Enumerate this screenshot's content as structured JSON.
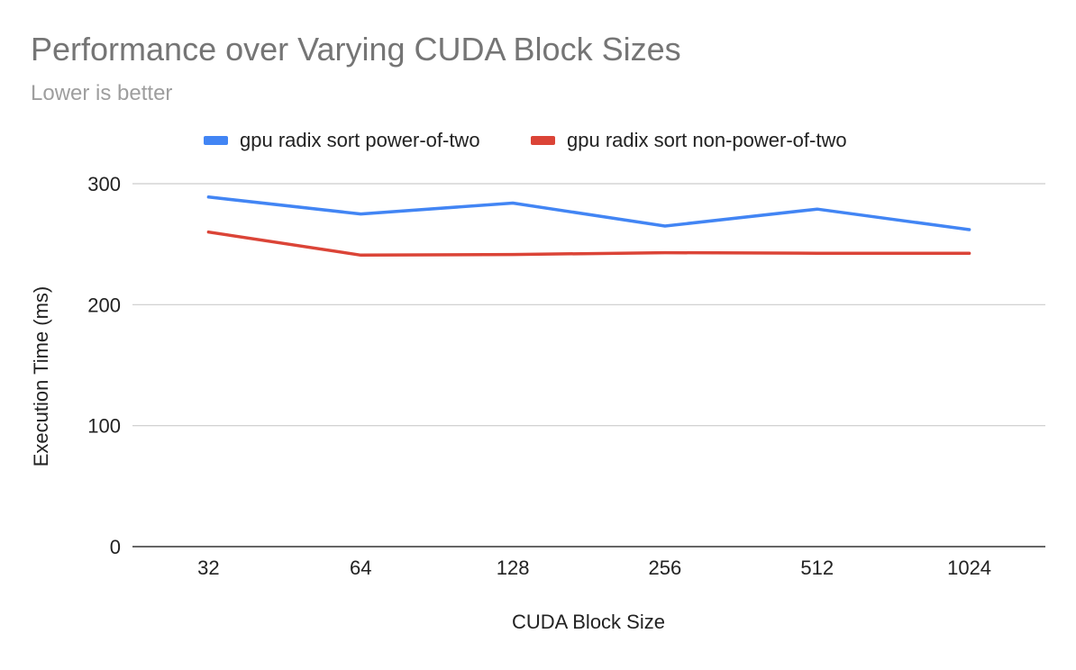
{
  "chart_data": {
    "type": "line",
    "title": "Performance over Varying CUDA Block Sizes",
    "subtitle": "Lower is better",
    "xlabel": "CUDA Block Size",
    "ylabel": "Execution Time (ms)",
    "categories": [
      "32",
      "64",
      "128",
      "256",
      "512",
      "1024"
    ],
    "ylim": [
      0,
      300
    ],
    "yticks": [
      0,
      100,
      200,
      300
    ],
    "grid": true,
    "legend": "top",
    "series": [
      {
        "name": "gpu radix sort power-of-two",
        "color": "#4285F4",
        "values": [
          289,
          275,
          284,
          265,
          279,
          262
        ]
      },
      {
        "name": "gpu radix sort non-power-of-two",
        "color": "#DB4437",
        "values": [
          260,
          241,
          241.5,
          243,
          242.5,
          242.5
        ]
      }
    ]
  }
}
